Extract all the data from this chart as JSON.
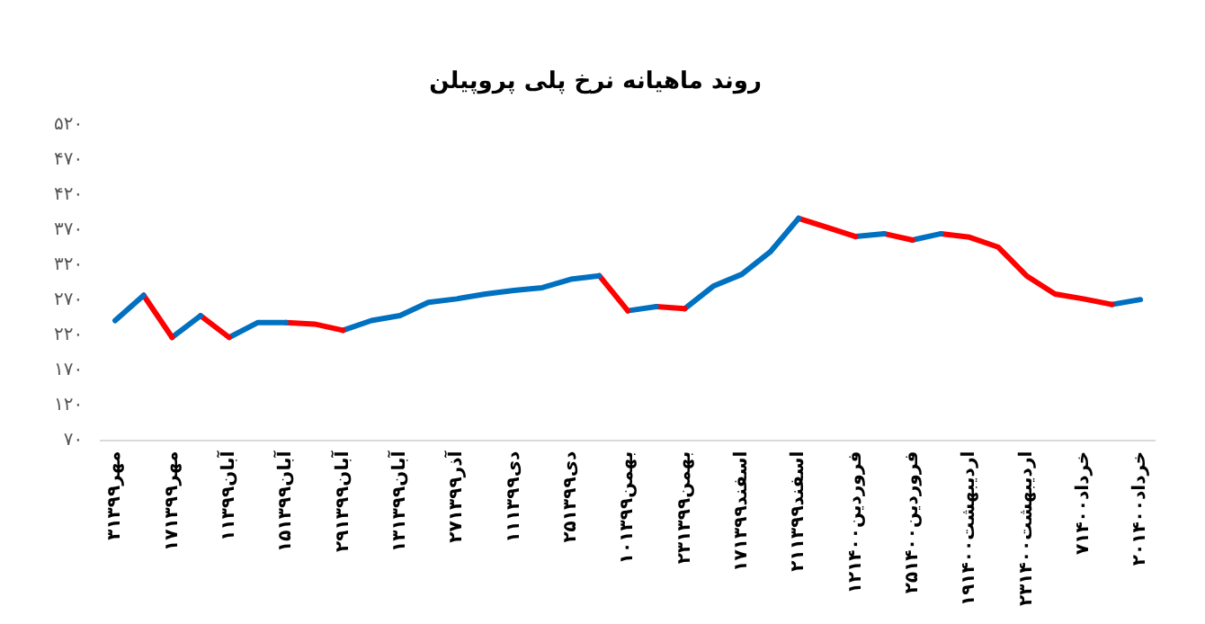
{
  "chart_data": {
    "type": "line",
    "title": "روند ماهیانه نرخ پلی پروپیلن",
    "categories": [
      "۳مهر۱۳۹۹",
      null,
      "۱۷مهر۱۳۹۹",
      null,
      "۱آبان۱۳۹۹",
      null,
      "۱۵آبان۱۳۹۹",
      null,
      "۲۹آبان۱۳۹۹",
      null,
      "۱۳آبان۱۳۹۹",
      null,
      "۲۷آذر۱۳۹۹",
      null,
      "۱۱دی۱۳۹۹",
      null,
      "۲۵دی۱۳۹۹",
      null,
      "۱۰بهمن۱۳۹۹",
      null,
      "۲۳بهمن۱۳۹۹",
      null,
      "۱۷اسفند۱۳۹۹",
      null,
      "۲۱اسفند۱۳۹۹",
      null,
      "۱۲فروردین۱۴۰۰",
      null,
      "۲۵فروردین۱۴۰۰",
      null,
      "۱۹اردیبهشت۱۴۰۰",
      null,
      "۲۳اردیبهشت۱۴۰۰",
      null,
      "۷خرداد۱۴۰۰",
      null,
      "۲۰خرداد۱۴۰۰"
    ],
    "series": [
      {
        "color": "#0070c0",
        "values": [
          241,
          277,
          null,
          null,
          null,
          null,
          null,
          null,
          null,
          null,
          null,
          null,
          null,
          null,
          null,
          null,
          null,
          null,
          null,
          null,
          null,
          null,
          null,
          null,
          null,
          null,
          null,
          null,
          null,
          null,
          null,
          null,
          null,
          null,
          null,
          null,
          null
        ]
      },
      {
        "color": "#ff0000",
        "values": [
          null,
          277,
          217,
          null,
          null,
          null,
          null,
          null,
          null,
          null,
          null,
          null,
          null,
          null,
          null,
          null,
          null,
          null,
          null,
          null,
          null,
          null,
          null,
          null,
          null,
          null,
          null,
          null,
          null,
          null,
          null,
          null,
          null,
          null,
          null,
          null,
          null
        ]
      },
      {
        "color": "#0070c0",
        "values": [
          null,
          null,
          217,
          248,
          null,
          null,
          null,
          null,
          null,
          null,
          null,
          null,
          null,
          null,
          null,
          null,
          null,
          null,
          null,
          null,
          null,
          null,
          null,
          null,
          null,
          null,
          null,
          null,
          null,
          null,
          null,
          null,
          null,
          null,
          null,
          null,
          null
        ]
      },
      {
        "color": "#ff0000",
        "values": [
          null,
          null,
          null,
          248,
          217,
          null,
          null,
          null,
          null,
          null,
          null,
          null,
          null,
          null,
          null,
          null,
          null,
          null,
          null,
          null,
          null,
          null,
          null,
          null,
          null,
          null,
          null,
          null,
          null,
          null,
          null,
          null,
          null,
          null,
          null,
          null,
          null
        ]
      },
      {
        "color": "#0070c0",
        "values": [
          null,
          null,
          null,
          null,
          217,
          238,
          238,
          null,
          null,
          null,
          null,
          null,
          null,
          null,
          null,
          null,
          null,
          null,
          null,
          null,
          null,
          null,
          null,
          null,
          null,
          null,
          null,
          null,
          null,
          null,
          null,
          null,
          null,
          null,
          null,
          null,
          null
        ]
      },
      {
        "color": "#ff0000",
        "values": [
          null,
          null,
          null,
          null,
          null,
          null,
          238,
          236,
          227,
          null,
          null,
          null,
          null,
          null,
          null,
          null,
          null,
          null,
          null,
          null,
          null,
          null,
          null,
          null,
          null,
          null,
          null,
          null,
          null,
          null,
          null,
          null,
          null,
          null,
          null,
          null,
          null
        ]
      },
      {
        "color": "#0070c0",
        "values": [
          null,
          null,
          null,
          null,
          null,
          null,
          null,
          null,
          227,
          241,
          248,
          267,
          272,
          279,
          284,
          288,
          300,
          305,
          null,
          null,
          null,
          null,
          null,
          null,
          null,
          null,
          null,
          null,
          null,
          null,
          null,
          null,
          null,
          null,
          null,
          null,
          null
        ]
      },
      {
        "color": "#ff0000",
        "values": [
          null,
          null,
          null,
          null,
          null,
          null,
          null,
          null,
          null,
          null,
          null,
          null,
          null,
          null,
          null,
          null,
          null,
          305,
          255,
          null,
          null,
          null,
          null,
          null,
          null,
          null,
          null,
          null,
          null,
          null,
          null,
          null,
          null,
          null,
          null,
          null,
          null
        ]
      },
      {
        "color": "#0070c0",
        "values": [
          null,
          null,
          null,
          null,
          null,
          null,
          null,
          null,
          null,
          null,
          null,
          null,
          null,
          null,
          null,
          null,
          null,
          null,
          255,
          261,
          null,
          null,
          null,
          null,
          null,
          null,
          null,
          null,
          null,
          null,
          null,
          null,
          null,
          null,
          null,
          null,
          null
        ]
      },
      {
        "color": "#ff0000",
        "values": [
          null,
          null,
          null,
          null,
          null,
          null,
          null,
          null,
          null,
          null,
          null,
          null,
          null,
          null,
          null,
          null,
          null,
          null,
          null,
          261,
          258,
          null,
          null,
          null,
          null,
          null,
          null,
          null,
          null,
          null,
          null,
          null,
          null,
          null,
          null,
          null,
          null
        ]
      },
      {
        "color": "#0070c0",
        "values": [
          null,
          null,
          null,
          null,
          null,
          null,
          null,
          null,
          null,
          null,
          null,
          null,
          null,
          null,
          null,
          null,
          null,
          null,
          null,
          null,
          258,
          290,
          307,
          339,
          387,
          null,
          null,
          null,
          null,
          null,
          null,
          null,
          null,
          null,
          null,
          null,
          null
        ]
      },
      {
        "color": "#ff0000",
        "values": [
          null,
          null,
          null,
          null,
          null,
          null,
          null,
          null,
          null,
          null,
          null,
          null,
          null,
          null,
          null,
          null,
          null,
          null,
          null,
          null,
          null,
          null,
          null,
          null,
          387,
          374,
          361,
          null,
          null,
          null,
          null,
          null,
          null,
          null,
          null,
          null,
          null
        ]
      },
      {
        "color": "#0070c0",
        "values": [
          null,
          null,
          null,
          null,
          null,
          null,
          null,
          null,
          null,
          null,
          null,
          null,
          null,
          null,
          null,
          null,
          null,
          null,
          null,
          null,
          null,
          null,
          null,
          null,
          null,
          null,
          361,
          365,
          null,
          null,
          null,
          null,
          null,
          null,
          null,
          null,
          null
        ]
      },
      {
        "color": "#ff0000",
        "values": [
          null,
          null,
          null,
          null,
          null,
          null,
          null,
          null,
          null,
          null,
          null,
          null,
          null,
          null,
          null,
          null,
          null,
          null,
          null,
          null,
          null,
          null,
          null,
          null,
          null,
          null,
          null,
          365,
          356,
          null,
          null,
          null,
          null,
          null,
          null,
          null,
          null
        ]
      },
      {
        "color": "#0070c0",
        "values": [
          null,
          null,
          null,
          null,
          null,
          null,
          null,
          null,
          null,
          null,
          null,
          null,
          null,
          null,
          null,
          null,
          null,
          null,
          null,
          null,
          null,
          null,
          null,
          null,
          null,
          null,
          null,
          null,
          356,
          365,
          null,
          null,
          null,
          null,
          null,
          null,
          null
        ]
      },
      {
        "color": "#ff0000",
        "values": [
          null,
          null,
          null,
          null,
          null,
          null,
          null,
          null,
          null,
          null,
          null,
          null,
          null,
          null,
          null,
          null,
          null,
          null,
          null,
          null,
          null,
          null,
          null,
          null,
          null,
          null,
          null,
          null,
          null,
          365,
          360,
          346,
          305,
          279,
          272,
          264,
          null
        ]
      },
      {
        "color": "#0070c0",
        "values": [
          null,
          null,
          null,
          null,
          null,
          null,
          null,
          null,
          null,
          null,
          null,
          null,
          null,
          null,
          null,
          null,
          null,
          null,
          null,
          null,
          null,
          null,
          null,
          null,
          null,
          null,
          null,
          null,
          null,
          null,
          null,
          null,
          null,
          null,
          null,
          264,
          271
        ]
      }
    ],
    "ylim": [
      70,
      520
    ],
    "yticks": [
      {
        "value": 70,
        "label": "۷۰"
      },
      {
        "value": 120,
        "label": "۱۲۰"
      },
      {
        "value": 170,
        "label": "۱۷۰"
      },
      {
        "value": 220,
        "label": "۲۲۰"
      },
      {
        "value": 270,
        "label": "۲۷۰"
      },
      {
        "value": 320,
        "label": "۳۲۰"
      },
      {
        "value": 370,
        "label": "۳۷۰"
      },
      {
        "value": 420,
        "label": "۴۲۰"
      },
      {
        "value": 470,
        "label": "۴۷۰"
      },
      {
        "value": 520,
        "label": "۵۲۰"
      }
    ],
    "grid": false,
    "legend": false,
    "marker": "none",
    "line_style": "solid"
  }
}
